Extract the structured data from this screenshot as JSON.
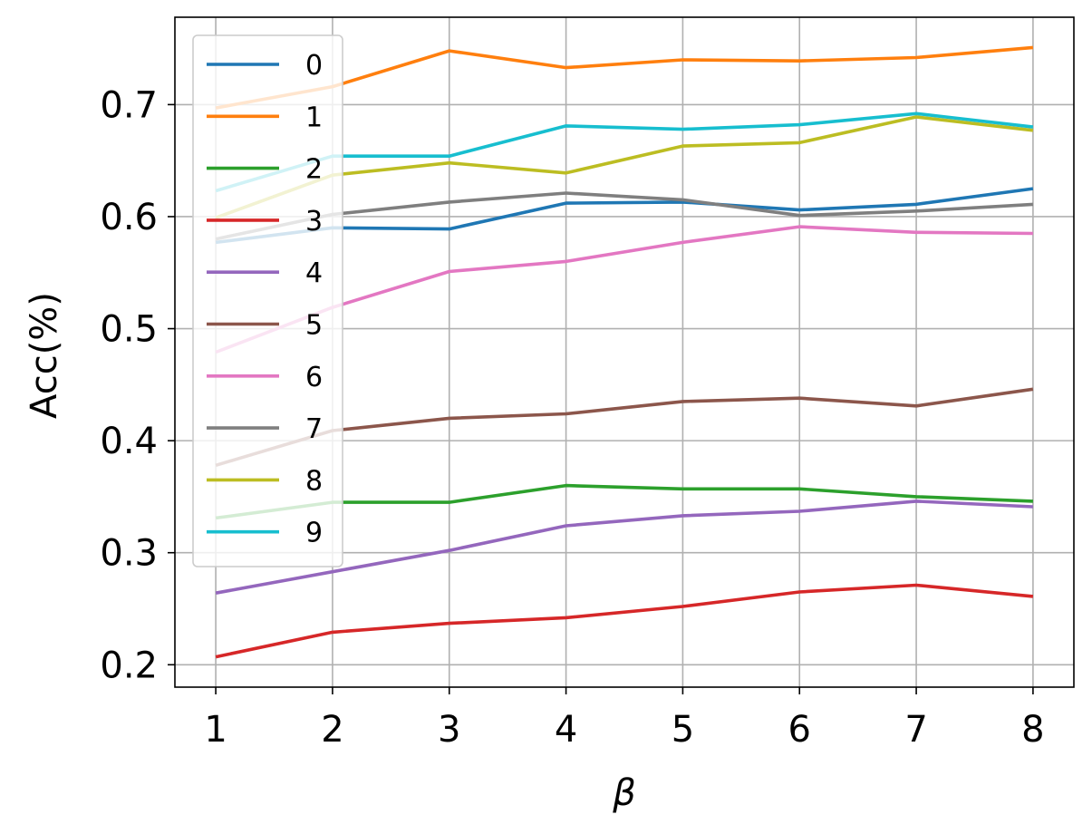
{
  "chart_data": {
    "type": "line",
    "xlabel": "β",
    "ylabel": "Acc(%)",
    "x": [
      1,
      2,
      3,
      4,
      5,
      6,
      7,
      8
    ],
    "xlim": [
      0.65,
      8.35
    ],
    "ylim": [
      0.18,
      0.778
    ],
    "yticks": [
      0.2,
      0.3,
      0.4,
      0.5,
      0.6,
      0.7
    ],
    "ytick_labels": [
      "0.2",
      "0.3",
      "0.4",
      "0.5",
      "0.6",
      "0.7"
    ],
    "xtick_labels": [
      "1",
      "2",
      "3",
      "4",
      "5",
      "6",
      "7",
      "8"
    ],
    "grid": true,
    "legend_position": "top-left",
    "series": [
      {
        "name": "0",
        "color": "#1f77b4",
        "values": [
          0.577,
          0.59,
          0.589,
          0.612,
          0.613,
          0.606,
          0.611,
          0.625
        ]
      },
      {
        "name": "1",
        "color": "#ff7f0e",
        "values": [
          0.697,
          0.716,
          0.748,
          0.733,
          0.74,
          0.739,
          0.742,
          0.751
        ]
      },
      {
        "name": "2",
        "color": "#2ca02c",
        "values": [
          0.331,
          0.345,
          0.345,
          0.36,
          0.357,
          0.357,
          0.35,
          0.346
        ]
      },
      {
        "name": "3",
        "color": "#d62728",
        "values": [
          0.207,
          0.229,
          0.237,
          0.242,
          0.252,
          0.265,
          0.271,
          0.261
        ]
      },
      {
        "name": "4",
        "color": "#9467bd",
        "values": [
          0.264,
          0.283,
          0.302,
          0.324,
          0.333,
          0.337,
          0.346,
          0.341
        ]
      },
      {
        "name": "5",
        "color": "#8c564b",
        "values": [
          0.378,
          0.409,
          0.42,
          0.424,
          0.435,
          0.438,
          0.431,
          0.446
        ]
      },
      {
        "name": "6",
        "color": "#e377c2",
        "values": [
          0.479,
          0.519,
          0.551,
          0.56,
          0.577,
          0.591,
          0.586,
          0.585
        ]
      },
      {
        "name": "7",
        "color": "#7f7f7f",
        "values": [
          0.58,
          0.602,
          0.613,
          0.621,
          0.615,
          0.601,
          0.605,
          0.611
        ]
      },
      {
        "name": "8",
        "color": "#bcbd22",
        "values": [
          0.599,
          0.637,
          0.648,
          0.639,
          0.663,
          0.666,
          0.689,
          0.677
        ]
      },
      {
        "name": "9",
        "color": "#17becf",
        "values": [
          0.623,
          0.654,
          0.654,
          0.681,
          0.678,
          0.682,
          0.692,
          0.68
        ]
      }
    ]
  }
}
